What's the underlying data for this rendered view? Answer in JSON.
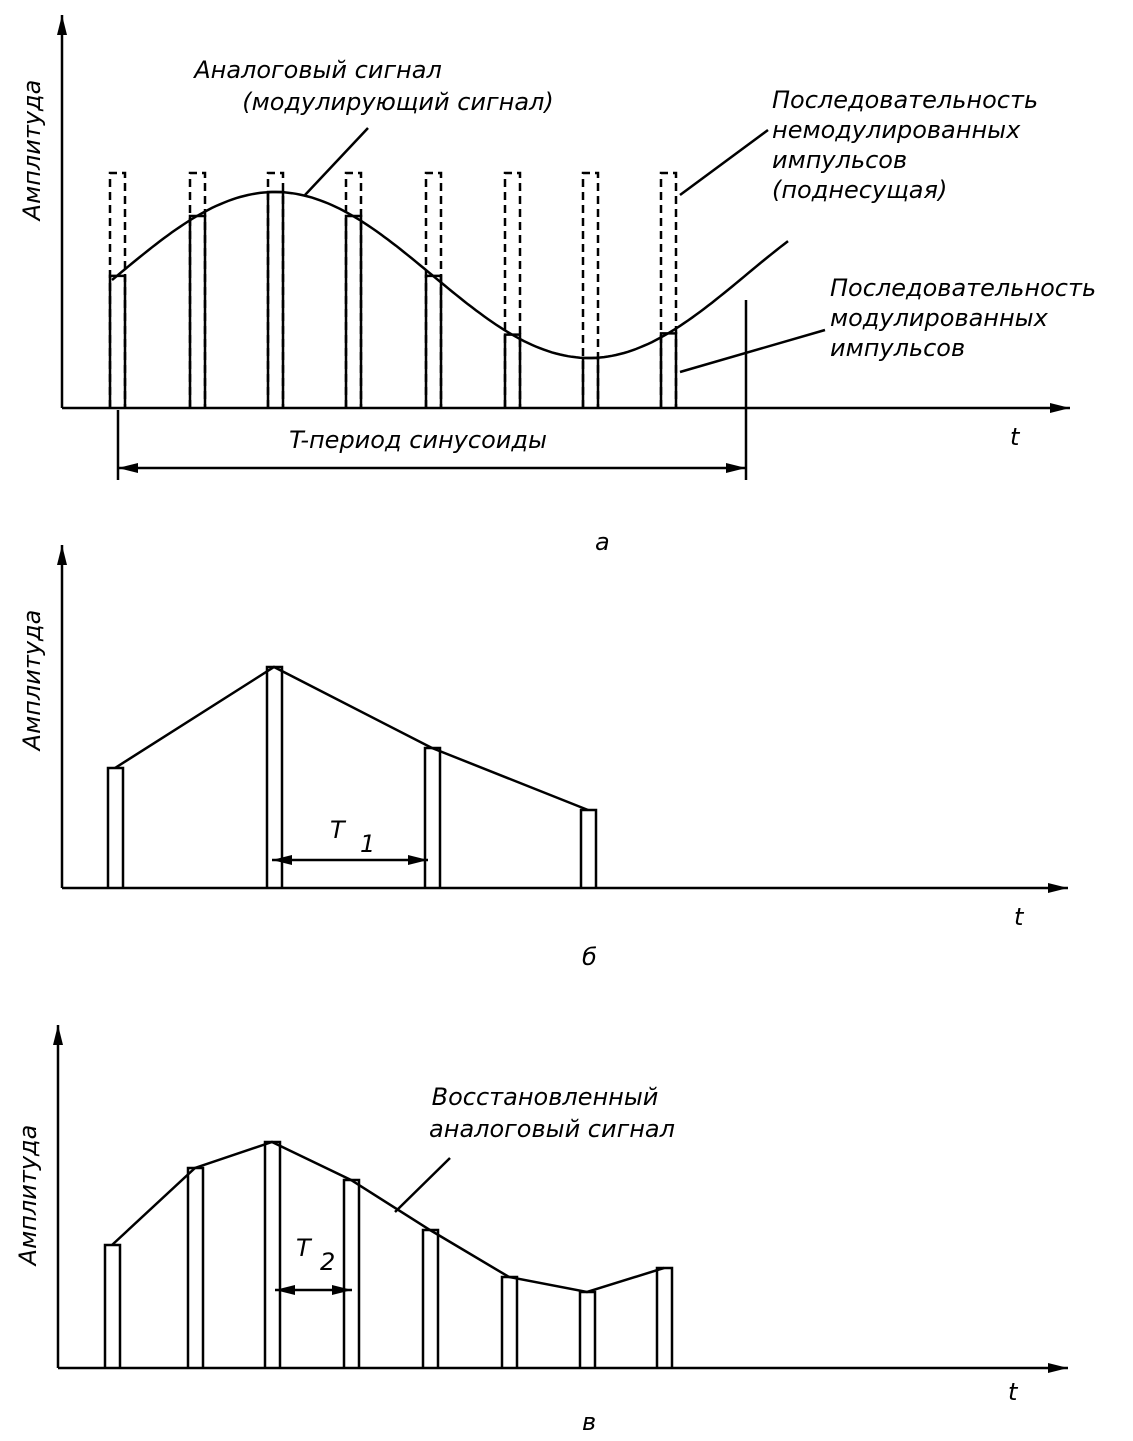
{
  "panels": [
    {
      "y_axis": "Амплитуда",
      "x_axis": "t",
      "label": "а",
      "analog_signal": [
        "Аналоговый   сигнал",
        "(модулирующий   сигнал)"
      ],
      "unmodulated_pulses": [
        "Последовательность",
        "немодулированных",
        "импульсов",
        "(поднесущая)"
      ],
      "modulated_pulses": [
        "Последовательность",
        "модулированных",
        "импульсов"
      ],
      "period": "T-период   синусоиды"
    },
    {
      "y_axis": "Амплитуда",
      "x_axis": "t",
      "label": "б",
      "interval": "T",
      "interval_index": "1"
    },
    {
      "y_axis": "Амплитуда",
      "x_axis": "t",
      "label": "в",
      "restored_signal": [
        "Восстановленный",
        "аналоговый   сигнал"
      ],
      "interval": "T",
      "interval_index": "2"
    }
  ]
}
